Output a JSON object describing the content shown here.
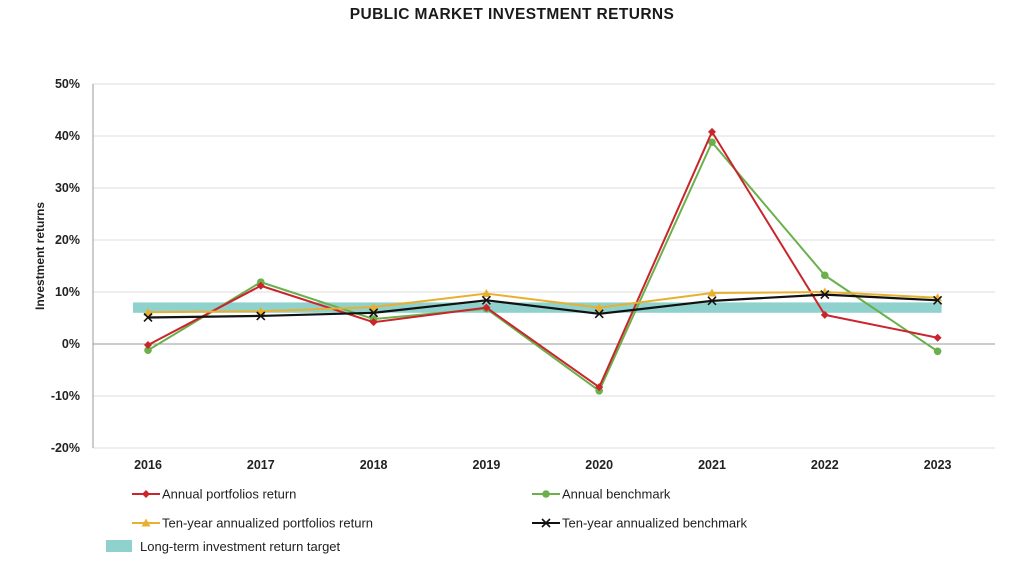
{
  "chart_data": {
    "type": "line",
    "title": "PUBLIC MARKET INVESTMENT RETURNS",
    "xlabel": "",
    "ylabel": "Investment returns",
    "categories": [
      "2016",
      "2017",
      "2018",
      "2019",
      "2020",
      "2021",
      "2022",
      "2023"
    ],
    "ylim": [
      -20,
      50
    ],
    "y_ticks": [
      -20,
      -10,
      0,
      10,
      20,
      30,
      40,
      50
    ],
    "y_tick_labels": [
      "-20%",
      "-10%",
      "0%",
      "10%",
      "20%",
      "30%",
      "40%",
      "50%"
    ],
    "grid": "horizontal",
    "legend_position": "bottom",
    "series": [
      {
        "name": "Annual portfolios return",
        "color": "#c9252c",
        "marker": "diamond",
        "values": [
          -0.2,
          11.2,
          4.2,
          7.0,
          -8.3,
          40.8,
          5.6,
          1.2
        ]
      },
      {
        "name": "Annual benchmark",
        "color": "#6ab04c",
        "marker": "circle",
        "values": [
          -1.2,
          11.9,
          4.8,
          6.8,
          -9.0,
          38.8,
          13.2,
          -1.4
        ]
      },
      {
        "name": "Ten-year annualized portfolios return",
        "color": "#e8b030",
        "marker": "triangle",
        "values": [
          6.1,
          6.3,
          7.1,
          9.7,
          7.0,
          9.8,
          10.0,
          8.9
        ]
      },
      {
        "name": "Ten-year annualized benchmark",
        "color": "#111111",
        "marker": "x",
        "values": [
          5.1,
          5.4,
          6.0,
          8.4,
          5.8,
          8.3,
          9.5,
          8.4
        ]
      }
    ],
    "target_band": {
      "name": "Long-term investment return target",
      "color": "#8fd1cc",
      "range": [
        6,
        8
      ]
    }
  }
}
